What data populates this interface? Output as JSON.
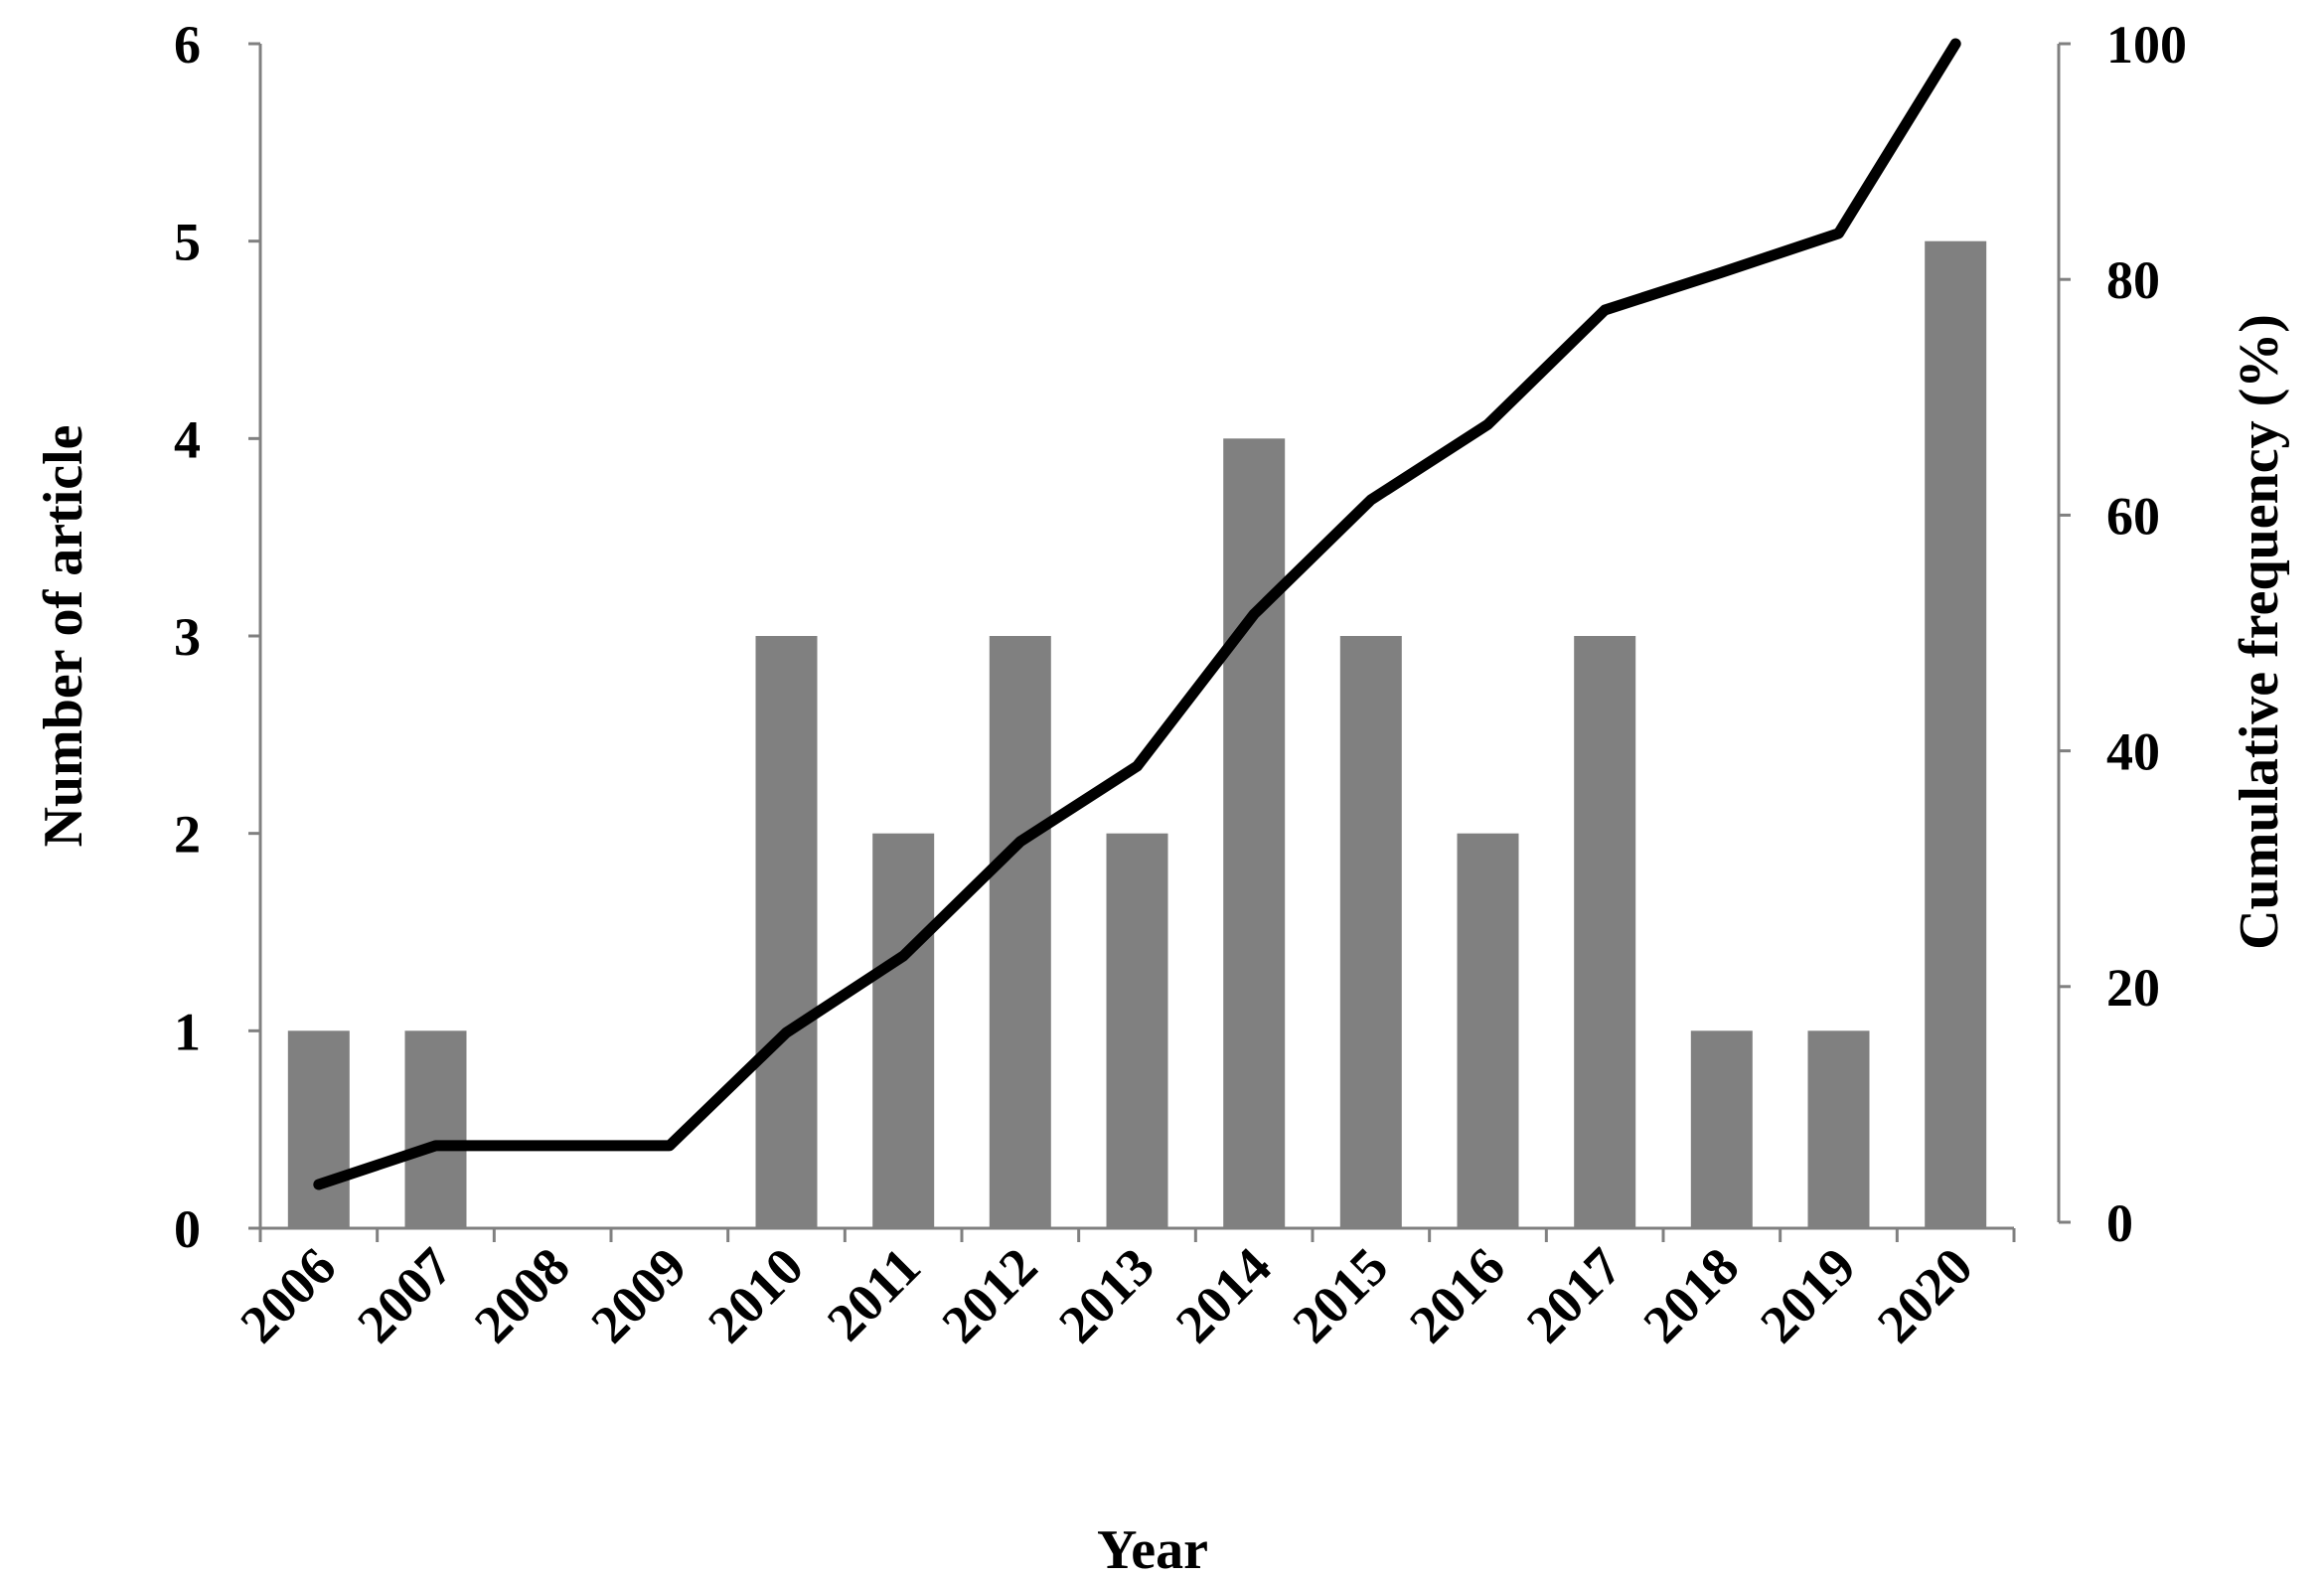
{
  "chart_data": {
    "type": "bar",
    "categories": [
      "2006",
      "2007",
      "2008",
      "2009",
      "2010",
      "2011",
      "2012",
      "2013",
      "2014",
      "2015",
      "2016",
      "2017",
      "2018",
      "2019",
      "2020"
    ],
    "series": [
      {
        "type": "bar",
        "axis": "left",
        "values": [
          1,
          1,
          0,
          0,
          3,
          2,
          3,
          2,
          4,
          3,
          2,
          3,
          1,
          1,
          5
        ],
        "color": "#808080"
      },
      {
        "type": "line",
        "axis": "right",
        "values": [
          3.2,
          6.5,
          6.5,
          6.5,
          16.1,
          22.6,
          32.3,
          38.7,
          51.6,
          61.3,
          67.7,
          77.4,
          80.6,
          83.9,
          100
        ],
        "color": "#000000"
      }
    ],
    "xlabel": "Year",
    "ylabel": "Number of article",
    "y2label": "Cumulative frequency (%)",
    "ylim": [
      0,
      6
    ],
    "y2lim": [
      0,
      100
    ],
    "yticks": [
      "0",
      "1",
      "2",
      "3",
      "4",
      "5",
      "6"
    ],
    "y2ticks": [
      "0",
      "20",
      "40",
      "60",
      "80",
      "100"
    ],
    "grid": false,
    "legend": "none"
  }
}
